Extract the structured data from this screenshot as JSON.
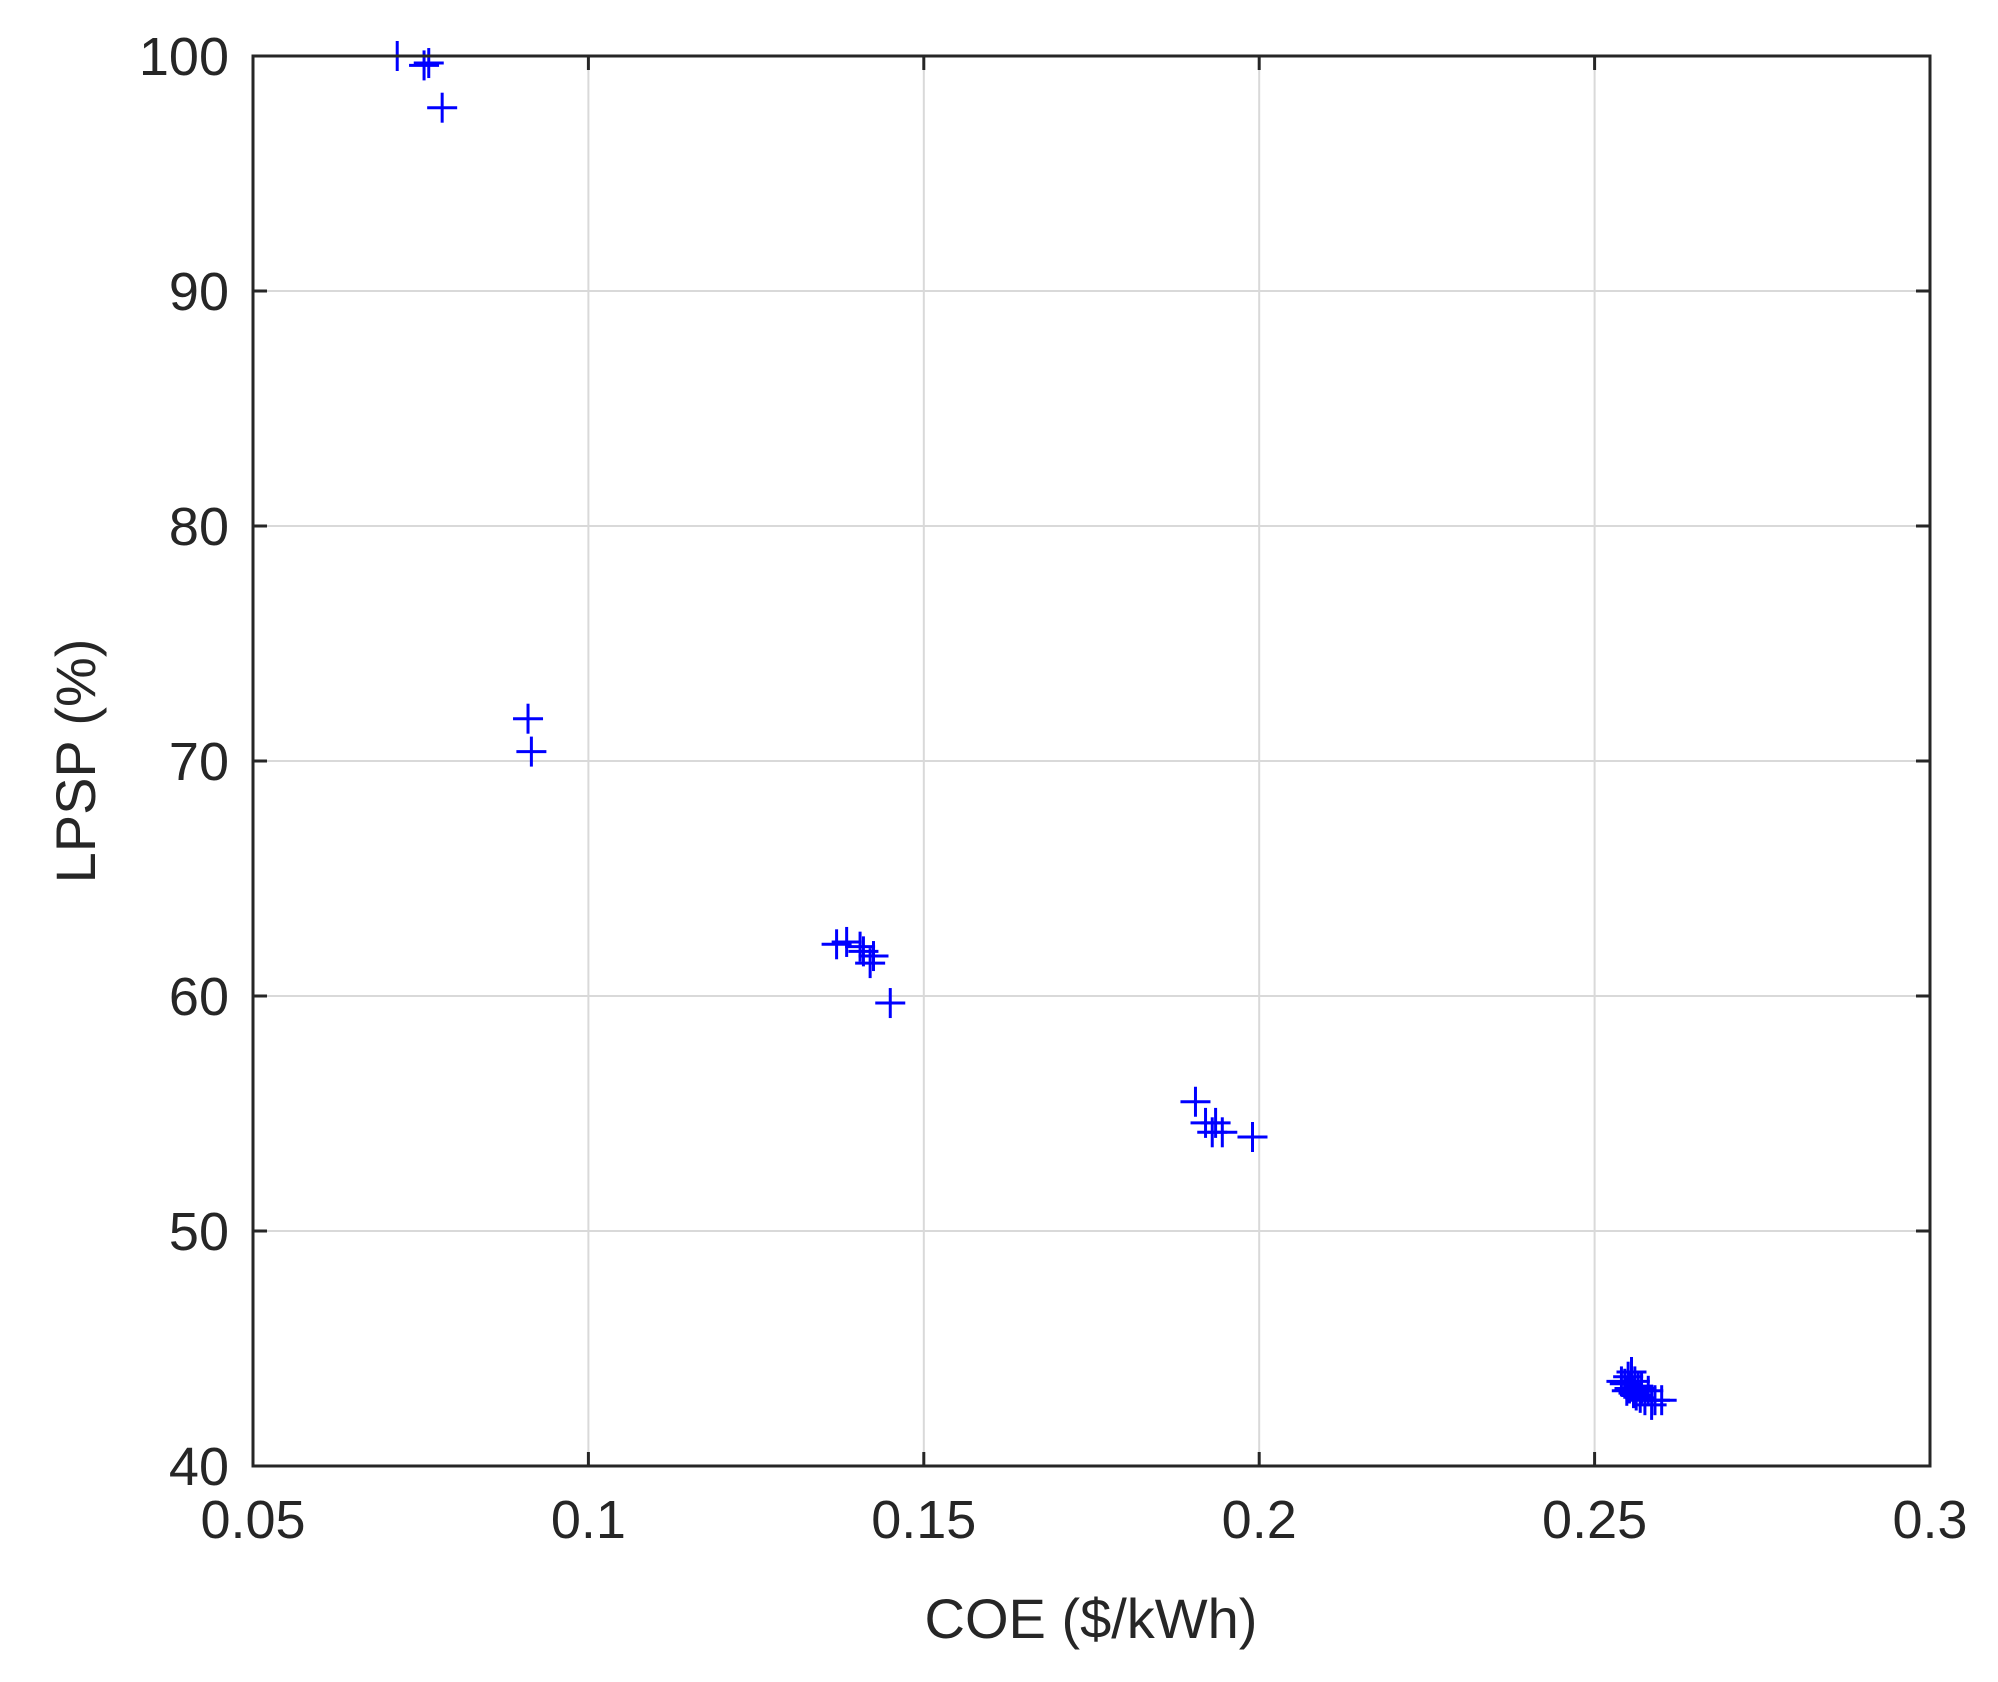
{
  "chart_data": {
    "type": "scatter",
    "title": "",
    "xlabel": "COE ($/kWh)",
    "ylabel": "LPSP (%)",
    "xlim": [
      0.05,
      0.3
    ],
    "ylim": [
      40,
      100
    ],
    "xticks": [
      0.05,
      0.1,
      0.15,
      0.2,
      0.25,
      0.3
    ],
    "xtick_labels": [
      "0.05",
      "0.1",
      "0.15",
      "0.2",
      "0.25",
      "0.3"
    ],
    "yticks": [
      40,
      50,
      60,
      70,
      80,
      90,
      100
    ],
    "ytick_labels": [
      "40",
      "50",
      "60",
      "70",
      "80",
      "90",
      "100"
    ],
    "grid": true,
    "marker": "plus",
    "marker_color": "#0000ff",
    "series": [
      {
        "x": [
          0.0715,
          0.0755,
          0.0762,
          0.0782,
          0.091,
          0.0915,
          0.137,
          0.1385,
          0.1405,
          0.141,
          0.142,
          0.1425,
          0.145,
          0.1905,
          0.192,
          0.193,
          0.1935,
          0.1945,
          0.199,
          0.254,
          0.2545,
          0.2548,
          0.255,
          0.2552,
          0.2555,
          0.2558,
          0.256,
          0.2562,
          0.2565,
          0.2568,
          0.257,
          0.2575,
          0.258,
          0.2585,
          0.259,
          0.26
        ],
        "y": [
          100.0,
          99.6,
          99.7,
          97.8,
          71.8,
          70.4,
          62.2,
          62.3,
          62.1,
          61.9,
          61.4,
          61.7,
          59.7,
          55.5,
          54.6,
          54.2,
          54.6,
          54.2,
          54.0,
          43.6,
          43.5,
          43.2,
          43.8,
          43.3,
          44.0,
          43.1,
          43.6,
          43.0,
          43.4,
          42.9,
          43.3,
          42.8,
          43.2,
          42.6,
          42.8,
          42.8
        ]
      }
    ]
  }
}
